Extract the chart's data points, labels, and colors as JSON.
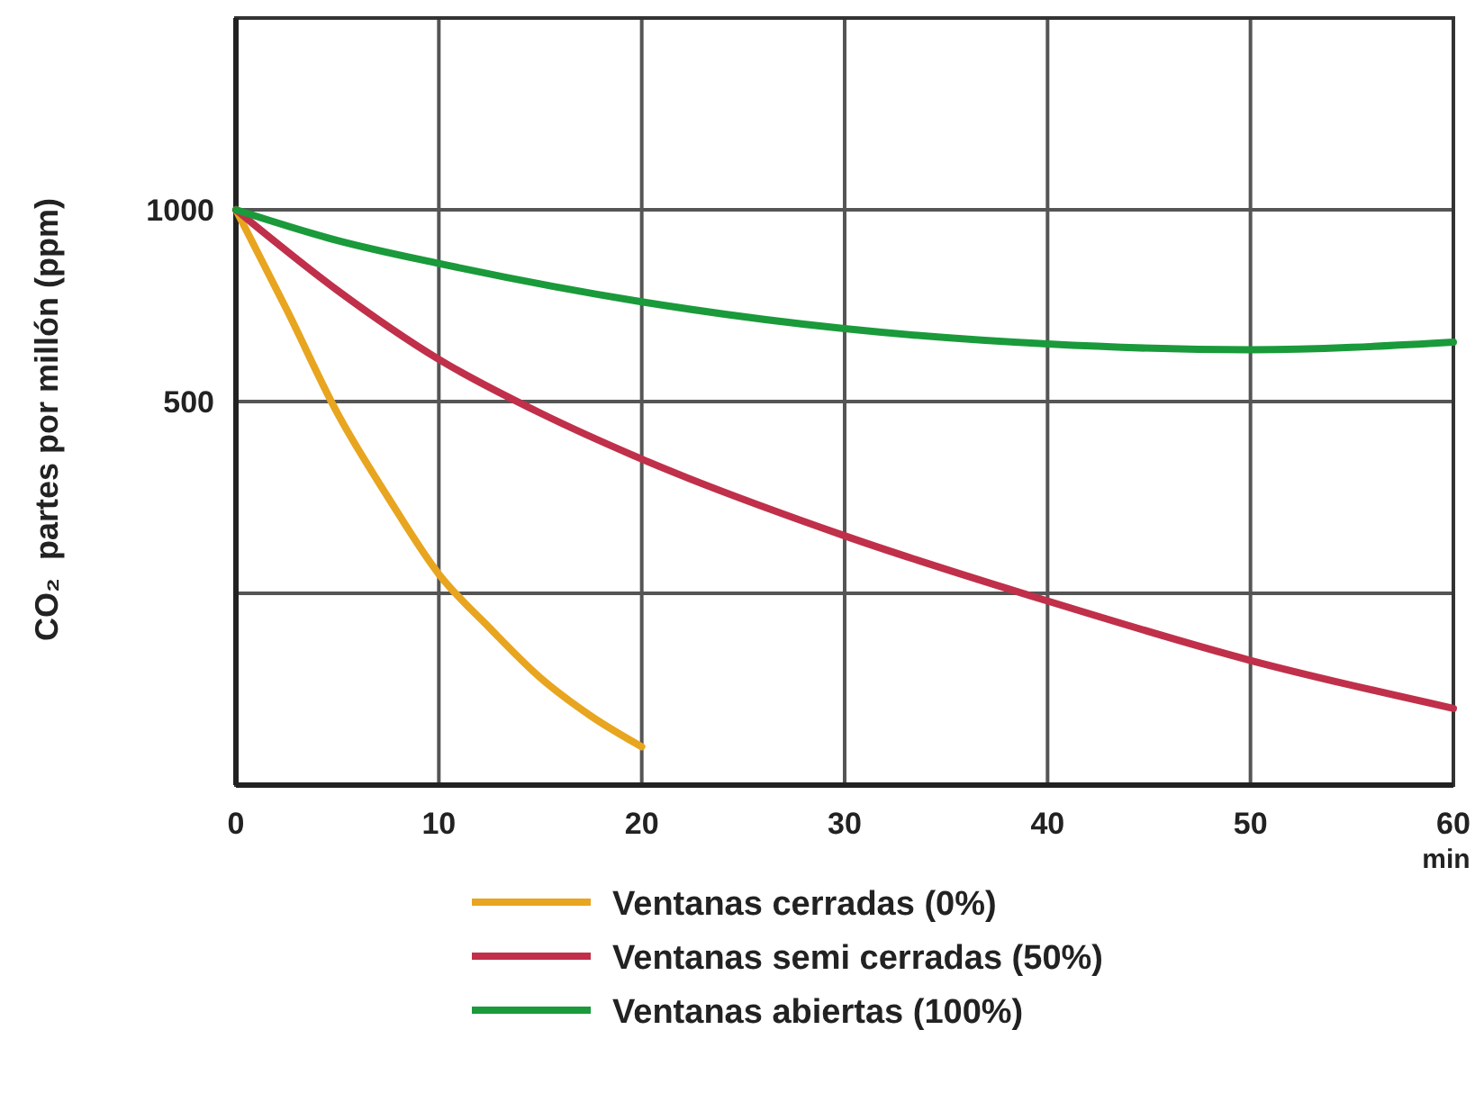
{
  "chart_data": {
    "type": "line",
    "xlabel": "min",
    "ylabel": "CO₂  partes por millón (ppm)",
    "xlim": [
      0,
      60
    ],
    "xticks": [
      0,
      10,
      20,
      30,
      40,
      50,
      60
    ],
    "ylim": [
      -500,
      1500
    ],
    "yticks": [
      {
        "value": 0,
        "label": null
      },
      500,
      1000
    ],
    "grid": true,
    "legend": "bottom",
    "marker": "none",
    "line_style": "solid",
    "series": [
      {
        "name": "Ventanas cerradas (0%)",
        "color": "#e8a51f",
        "x": [
          0,
          2.5,
          5,
          7.5,
          10,
          12.5,
          15,
          17.5,
          20
        ],
        "values": [
          1000,
          740,
          470,
          250,
          50,
          -90,
          -220,
          -320,
          -400
        ]
      },
      {
        "name": "Ventanas semi cerradas (50%)",
        "color": "#c0304a",
        "x": [
          0,
          5,
          10,
          15,
          20,
          30,
          40,
          50,
          60
        ],
        "values": [
          1000,
          790,
          610,
          470,
          350,
          150,
          -20,
          -175,
          -300
        ]
      },
      {
        "name": "Ventanas abiertas (100%)",
        "color": "#1a9a3a",
        "x": [
          0,
          5,
          10,
          20,
          30,
          40,
          50,
          60
        ],
        "values": [
          1000,
          920,
          860,
          760,
          690,
          650,
          635,
          655
        ]
      }
    ]
  }
}
